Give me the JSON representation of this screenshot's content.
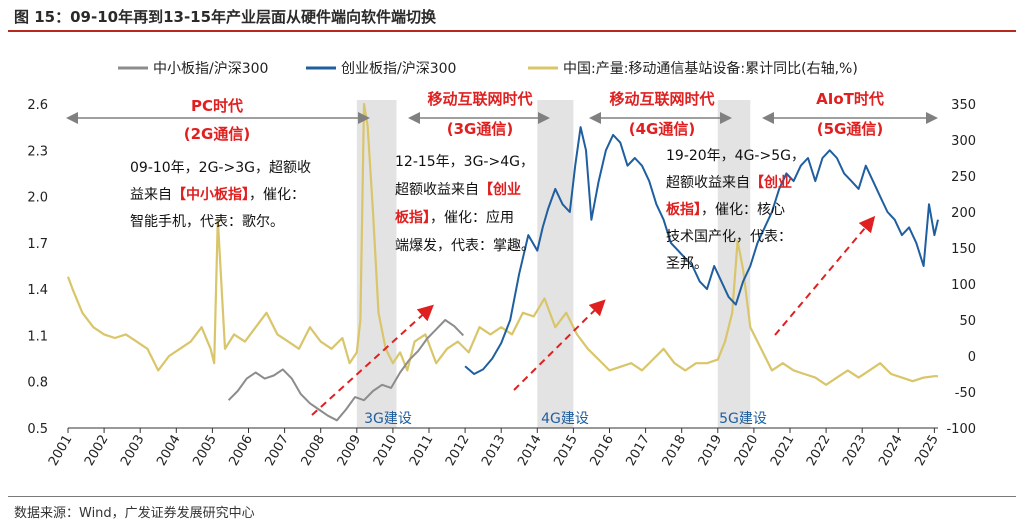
{
  "figure": {
    "title": "图 15：09-10年再到13-15年产业层面从硬件端向软件端切换",
    "source": "数据来源：Wind，广发证券发展研究中心"
  },
  "chart_data": {
    "type": "line",
    "title": "图 15：09-10年再到13-15年产业层面从硬件端向软件端切换",
    "xlabel": "",
    "ylabel": "",
    "xlim": [
      2001.0,
      2025.1
    ],
    "x_ticks": [
      "2001",
      "2002",
      "2003",
      "2004",
      "2005",
      "2006",
      "2007",
      "2008",
      "2009",
      "2010",
      "2011",
      "2012",
      "2013",
      "2014",
      "2015",
      "2016",
      "2017",
      "2018",
      "2019",
      "2020",
      "2021",
      "2022",
      "2023",
      "2024",
      "2025"
    ],
    "ylim_left": [
      0.5,
      2.6
    ],
    "y_ticks_left": [
      "0.5",
      "0.8",
      "1.1",
      "1.4",
      "1.7",
      "2.0",
      "2.3",
      "2.6"
    ],
    "ylim_right": [
      -100,
      350
    ],
    "y_ticks_right": [
      "-100",
      "-50",
      "0",
      "50",
      "100",
      "150",
      "200",
      "250",
      "300",
      "350"
    ],
    "grid": false,
    "legend_position": "top",
    "series": [
      {
        "name": "中小板指/沪深300",
        "axis": "left",
        "color": "#8c8c8c",
        "x": [
          2005.45,
          2005.7,
          2005.95,
          2006.2,
          2006.45,
          2006.7,
          2006.95,
          2007.2,
          2007.45,
          2007.7,
          2007.95,
          2008.2,
          2008.45,
          2008.7,
          2008.95,
          2009.2,
          2009.45,
          2009.7,
          2009.95,
          2010.2,
          2010.45,
          2010.7,
          2010.95,
          2011.2,
          2011.45,
          2011.7,
          2011.95
        ],
        "values": [
          0.68,
          0.74,
          0.82,
          0.86,
          0.82,
          0.84,
          0.88,
          0.82,
          0.72,
          0.66,
          0.62,
          0.58,
          0.55,
          0.62,
          0.7,
          0.68,
          0.74,
          0.78,
          0.76,
          0.86,
          0.94,
          1.0,
          1.08,
          1.14,
          1.2,
          1.16,
          1.1
        ]
      },
      {
        "name": "创业板指/沪深300",
        "axis": "left",
        "color": "#1f5fa0",
        "x": [
          2012.0,
          2012.25,
          2012.5,
          2012.75,
          2013.0,
          2013.25,
          2013.5,
          2013.75,
          2014.0,
          2014.15,
          2014.3,
          2014.5,
          2014.7,
          2014.9,
          2015.05,
          2015.2,
          2015.35,
          2015.5,
          2015.7,
          2015.9,
          2016.1,
          2016.3,
          2016.5,
          2016.7,
          2016.9,
          2017.1,
          2017.3,
          2017.5,
          2017.7,
          2017.9,
          2018.1,
          2018.3,
          2018.5,
          2018.7,
          2018.9,
          2019.1,
          2019.3,
          2019.5,
          2019.7,
          2019.9,
          2020.1,
          2020.3,
          2020.5,
          2020.7,
          2020.9,
          2021.1,
          2021.3,
          2021.5,
          2021.7,
          2021.9,
          2022.1,
          2022.3,
          2022.5,
          2022.7,
          2022.9,
          2023.1,
          2023.3,
          2023.5,
          2023.7,
          2023.9,
          2024.1,
          2024.3,
          2024.5,
          2024.7,
          2024.85,
          2025.0,
          2025.1
        ],
        "values": [
          0.9,
          0.85,
          0.88,
          0.95,
          1.05,
          1.2,
          1.5,
          1.75,
          1.65,
          1.8,
          1.92,
          2.05,
          1.95,
          1.9,
          2.2,
          2.45,
          2.3,
          1.85,
          2.1,
          2.3,
          2.4,
          2.35,
          2.2,
          2.25,
          2.2,
          2.1,
          1.95,
          1.85,
          1.7,
          1.65,
          1.6,
          1.55,
          1.45,
          1.4,
          1.55,
          1.45,
          1.35,
          1.3,
          1.45,
          1.55,
          1.7,
          1.8,
          1.9,
          2.05,
          2.15,
          2.1,
          2.2,
          2.25,
          2.1,
          2.25,
          2.3,
          2.25,
          2.15,
          2.1,
          2.05,
          2.2,
          2.1,
          2.0,
          1.9,
          1.85,
          1.75,
          1.8,
          1.7,
          1.55,
          1.95,
          1.75,
          1.85
        ]
      },
      {
        "name": "中国:产量:移动通信基站设备:累计同比(右轴,%)",
        "axis": "right",
        "color": "#d9c56a",
        "x": [
          2001.0,
          2001.15,
          2001.4,
          2001.7,
          2002.0,
          2002.3,
          2002.6,
          2002.9,
          2003.2,
          2003.5,
          2003.8,
          2004.1,
          2004.4,
          2004.7,
          2004.95,
          2005.05,
          2005.15,
          2005.35,
          2005.6,
          2005.9,
          2006.2,
          2006.5,
          2006.8,
          2007.1,
          2007.4,
          2007.7,
          2008.0,
          2008.3,
          2008.6,
          2008.8,
          2009.0,
          2009.1,
          2009.2,
          2009.3,
          2009.45,
          2009.6,
          2009.8,
          2010.0,
          2010.2,
          2010.4,
          2010.6,
          2010.9,
          2011.2,
          2011.5,
          2011.8,
          2012.1,
          2012.4,
          2012.7,
          2013.0,
          2013.3,
          2013.6,
          2013.9,
          2014.2,
          2014.5,
          2014.8,
          2015.1,
          2015.4,
          2015.7,
          2016.0,
          2016.3,
          2016.6,
          2016.9,
          2017.2,
          2017.5,
          2017.8,
          2018.1,
          2018.4,
          2018.7,
          2019.0,
          2019.2,
          2019.4,
          2019.55,
          2019.7,
          2019.9,
          2020.2,
          2020.5,
          2020.8,
          2021.1,
          2021.4,
          2021.7,
          2022.0,
          2022.3,
          2022.6,
          2022.9,
          2023.2,
          2023.5,
          2023.8,
          2024.1,
          2024.4,
          2024.7,
          2025.0,
          2025.1
        ],
        "values": [
          110,
          90,
          60,
          40,
          30,
          25,
          30,
          20,
          10,
          -20,
          0,
          10,
          20,
          40,
          10,
          -10,
          190,
          10,
          30,
          20,
          40,
          60,
          30,
          20,
          10,
          40,
          20,
          10,
          25,
          -10,
          5,
          50,
          350,
          320,
          200,
          60,
          10,
          -10,
          5,
          -20,
          20,
          30,
          -10,
          10,
          20,
          5,
          40,
          30,
          40,
          30,
          60,
          55,
          80,
          40,
          60,
          30,
          10,
          -5,
          -20,
          -15,
          -10,
          -20,
          -5,
          10,
          -10,
          -20,
          -10,
          -10,
          -5,
          20,
          60,
          160,
          120,
          40,
          10,
          -20,
          -10,
          -20,
          -25,
          -30,
          -40,
          -30,
          -20,
          -30,
          -20,
          -10,
          -25,
          -30,
          -35,
          -30,
          -28,
          -28
        ]
      }
    ],
    "annotations": {
      "periods": [
        {
          "label": "PC时代",
          "sub": "(2G通信)",
          "from": 2001.0,
          "to": 2009.1
        },
        {
          "label": "移动互联网时代",
          "sub": "(3G通信)",
          "from": 2010.0,
          "to": 2014.0
        },
        {
          "label": "移动互联网时代",
          "sub": "(4G通信)",
          "from": 2015.7,
          "to": 2019.1
        },
        {
          "label": "AIoT时代",
          "sub": "(5G通信)",
          "from": 2020.4,
          "to": 2025.1
        }
      ],
      "shaded_bands": [
        {
          "label": "3G建设",
          "from": 2009.0,
          "to": 2010.1
        },
        {
          "label": "4G建设",
          "from": 2014.0,
          "to": 2015.0
        },
        {
          "label": "5G建设",
          "from": 2019.0,
          "to": 2019.9
        }
      ],
      "notes": [
        {
          "pre": "09-10年，2G->3G，超额收",
          "mid1": "益来自",
          "red": "【中小板指】",
          "mid2": "，催化：",
          "post": "智能手机，代表：歌尔。"
        },
        {
          "l1": "12-15年，3G->4G，",
          "l2a": "超额收益来自",
          "l2b": "【创业",
          "l3a": "板指】",
          "l3b": "，催化：应用",
          "l4": "端爆发，代表：掌趣。"
        },
        {
          "l1": "19-20年，4G->5G，",
          "l2a": "超额收益来自",
          "l2b": "【创业",
          "l3a": "板指】",
          "l3b": "，催化：核心",
          "l4": "技术国产化，代表：",
          "l5": "圣邦。"
        }
      ]
    }
  }
}
